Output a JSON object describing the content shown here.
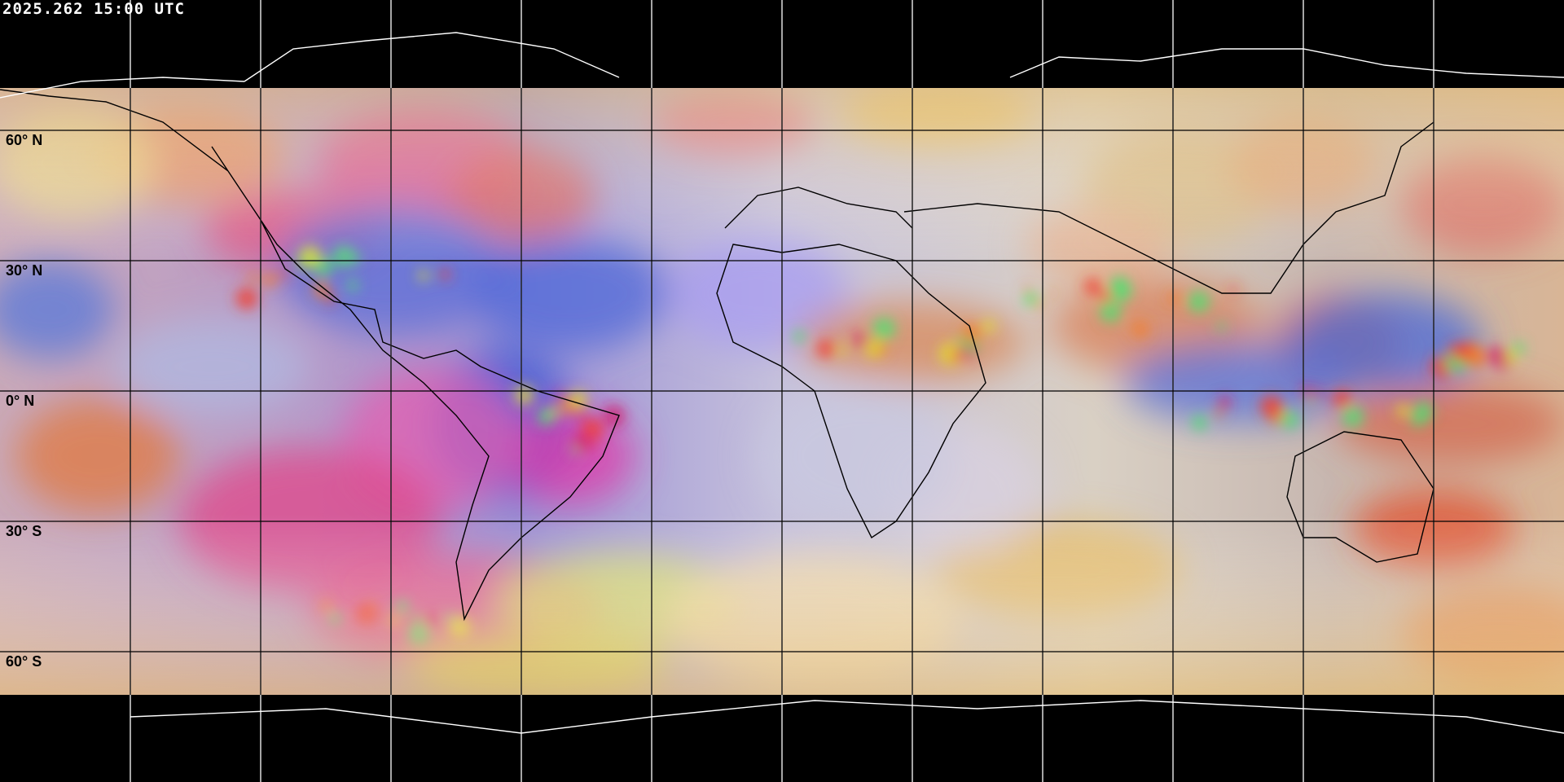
{
  "header": {
    "timestamp": "2025.262 15:00 UTC"
  },
  "map": {
    "projection": "equirectangular",
    "grid_spacing_degrees": 30,
    "latitude_labels": [
      "60° N",
      "30° N",
      "0° N",
      "30° S",
      "60° S"
    ],
    "colors": {
      "background": "#000000",
      "coastline_on_night": "#ffffff",
      "coastline_on_imagery": "#000000",
      "grid_on_imagery": "#000000",
      "grid_on_night": "#ffffff"
    }
  }
}
